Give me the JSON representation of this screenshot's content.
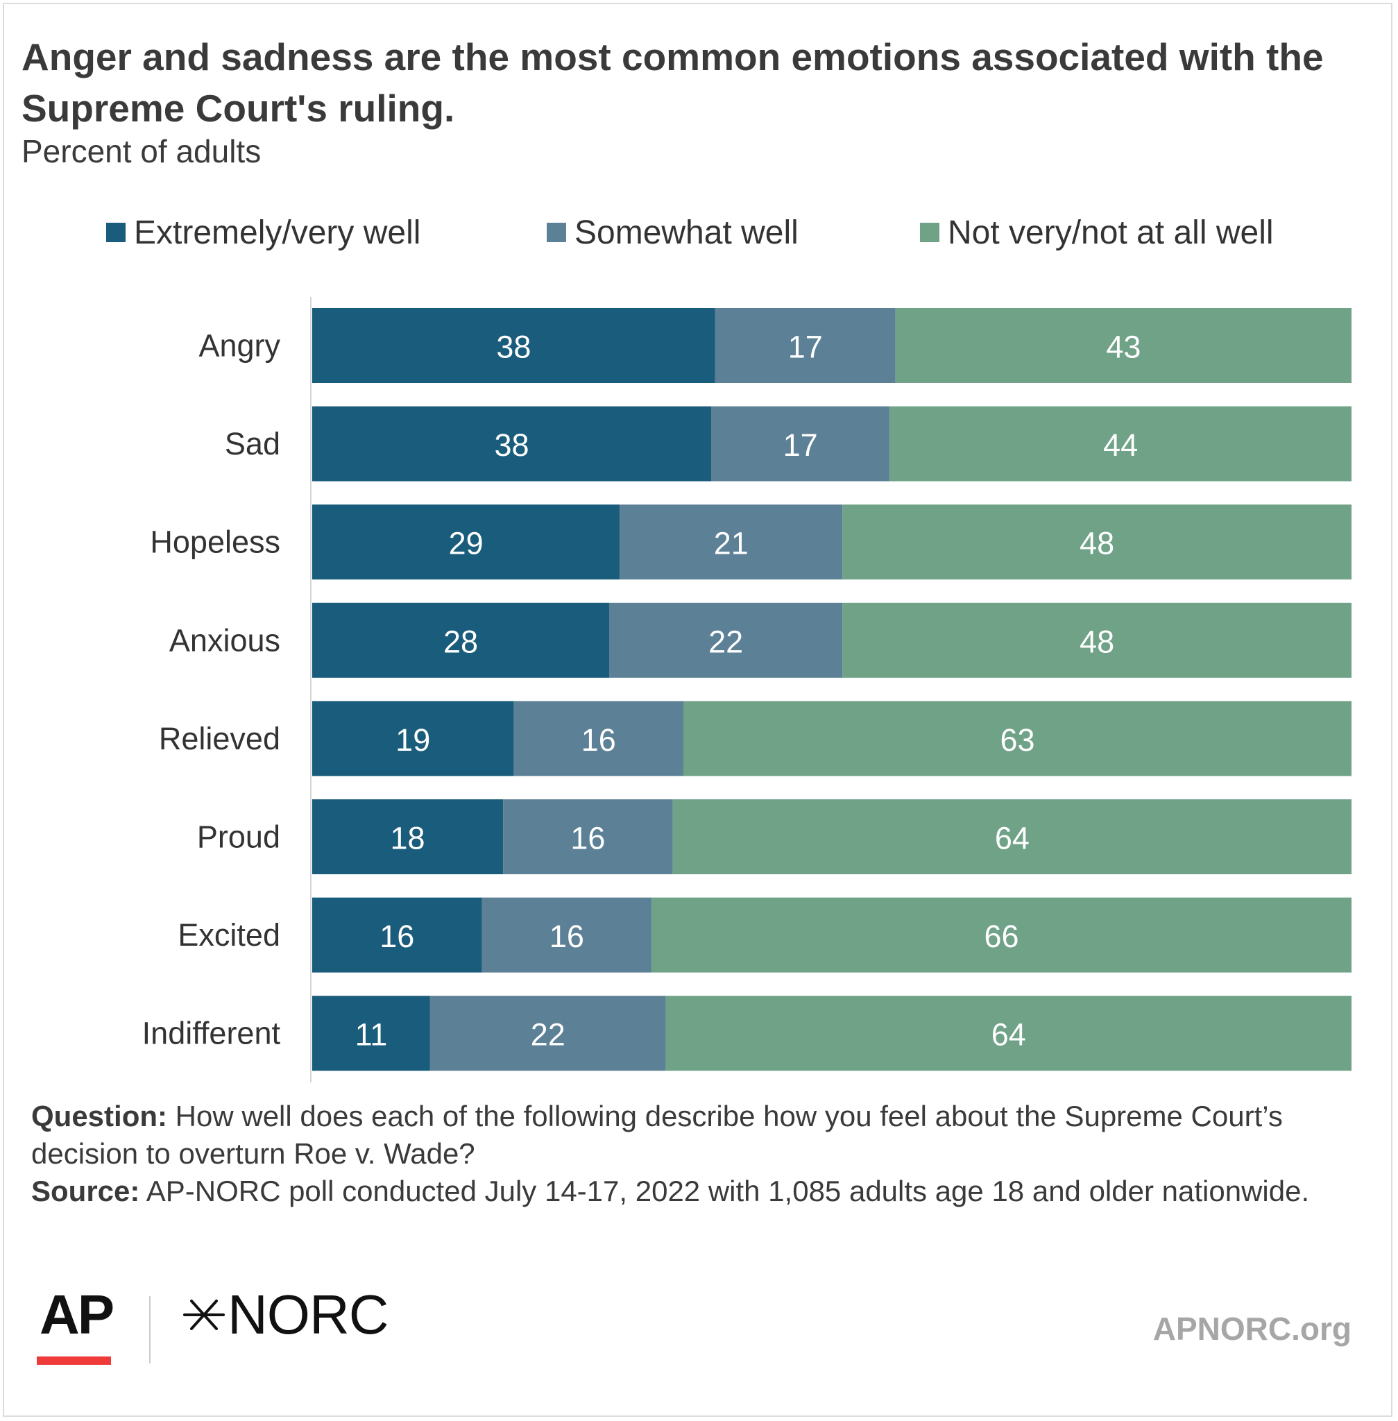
{
  "header": {
    "title": "Anger and sadness are the most common emotions associated with the Supreme Court's ruling.",
    "subtitle": "Percent of adults"
  },
  "colors": {
    "extremely_very_well": "#1a5c7b",
    "somewhat_well": "#5c8096",
    "not_very_not_at_all": "#6fa287",
    "value_label": "#ffffff"
  },
  "chart_data": {
    "type": "bar",
    "orientation": "horizontal",
    "stacked": true,
    "title": "Anger and sadness are the most common emotions associated with the Supreme Court's ruling.",
    "subtitle": "Percent of adults",
    "categories": [
      "Angry",
      "Sad",
      "Hopeless",
      "Anxious",
      "Relieved",
      "Proud",
      "Excited",
      "Indifferent"
    ],
    "series": [
      {
        "name": "Extremely/very well",
        "color": "#1a5c7b",
        "values": [
          38,
          38,
          29,
          28,
          19,
          18,
          16,
          11
        ]
      },
      {
        "name": "Somewhat well",
        "color": "#5c8096",
        "values": [
          17,
          17,
          21,
          22,
          16,
          16,
          16,
          22
        ]
      },
      {
        "name": "Not very/not at all well",
        "color": "#6fa287",
        "values": [
          43,
          44,
          48,
          48,
          63,
          64,
          66,
          64
        ]
      }
    ],
    "legend_position": "top",
    "grid": false
  },
  "notes": {
    "question_label": "Question:",
    "question_text": " How well does each of the following describe how you feel about the Supreme Court’s decision to overturn Roe v. Wade?",
    "source_label": "Source:",
    "source_text": " AP-NORC poll conducted July 14-17, 2022 with 1,085 adults age 18 and older nationwide."
  },
  "footer": {
    "ap_logo": "AP",
    "norc_logo": "NORC",
    "norc_icon": "norc-star-icon",
    "site": "APNORC.org"
  }
}
